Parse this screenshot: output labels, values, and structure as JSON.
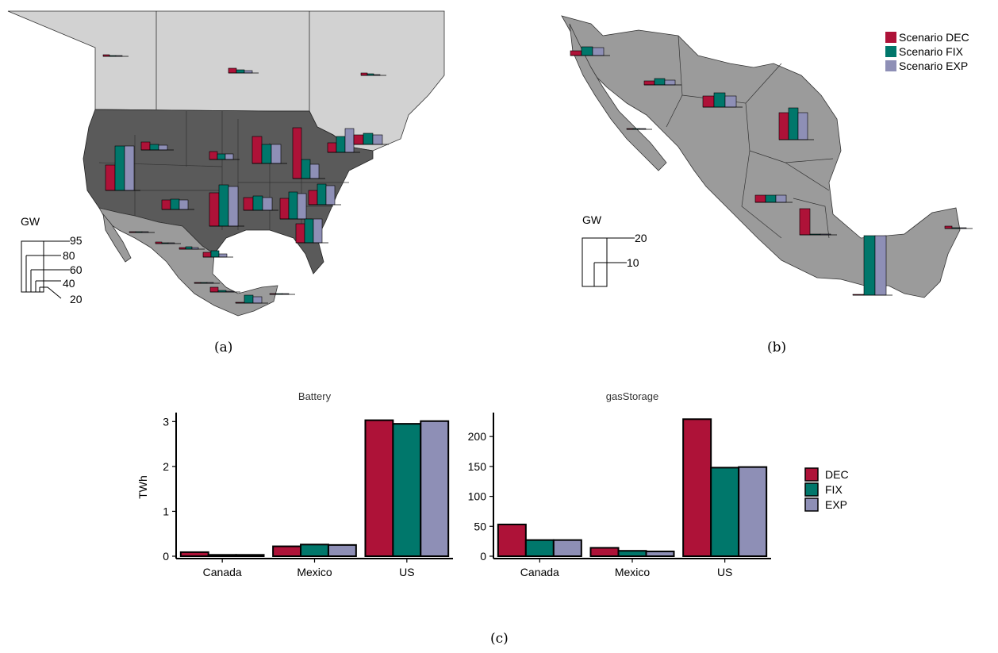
{
  "colors": {
    "DEC": "#ae1238",
    "FIX": "#00776b",
    "EXP": "#8e8fb6",
    "us_fill": "#5a5a5a",
    "can_fill": "#d2d2d2",
    "mex_fill": "#9b9b9b"
  },
  "panels": {
    "a": {
      "caption": "(a)",
      "gw_title": "GW",
      "gw_scale": [
        "95",
        "80",
        "60",
        "40",
        "20"
      ]
    },
    "b": {
      "caption": "(b)",
      "gw_title": "GW",
      "gw_scale": [
        "20",
        "10"
      ],
      "legend": [
        "Scenario DEC",
        "Scenario FIX",
        "Scenario EXP"
      ]
    },
    "c": {
      "caption": "(c)"
    }
  },
  "chart_data": [
    {
      "type": "bar",
      "title": "Battery",
      "ylabel": "TWh",
      "categories": [
        "Canada",
        "Mexico",
        "US"
      ],
      "ylim": [
        0,
        3.2
      ],
      "yticks": [
        "0",
        "1",
        "2",
        "3"
      ],
      "series": [
        {
          "name": "DEC",
          "values": [
            0.09,
            0.22,
            3.03
          ]
        },
        {
          "name": "FIX",
          "values": [
            0.03,
            0.26,
            2.95
          ]
        },
        {
          "name": "EXP",
          "values": [
            0.03,
            0.25,
            3.01
          ]
        }
      ]
    },
    {
      "type": "bar",
      "title": "gasStorage",
      "ylabel": "",
      "categories": [
        "Canada",
        "Mexico",
        "US"
      ],
      "ylim": [
        0,
        240
      ],
      "yticks": [
        "0",
        "50",
        "100",
        "150",
        "200"
      ],
      "series": [
        {
          "name": "DEC",
          "values": [
            53,
            14,
            229
          ]
        },
        {
          "name": "FIX",
          "values": [
            27,
            9,
            148
          ]
        },
        {
          "name": "EXP",
          "values": [
            27,
            8,
            149
          ]
        }
      ]
    }
  ],
  "legend_c": [
    "DEC",
    "FIX",
    "EXP"
  ]
}
